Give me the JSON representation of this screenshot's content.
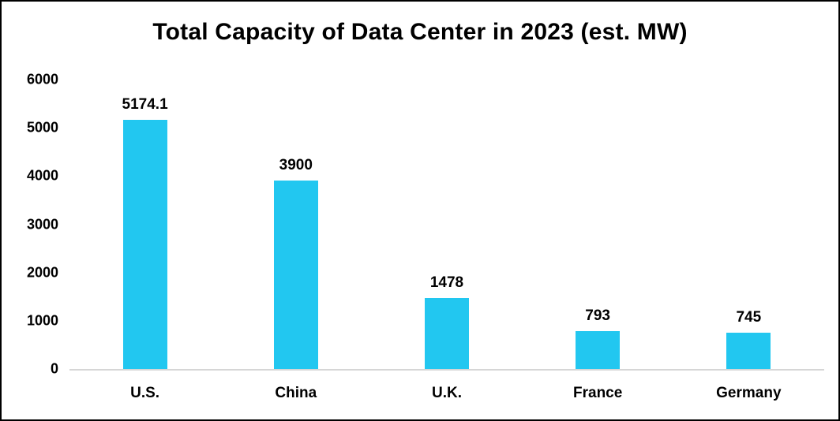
{
  "chart_data": {
    "type": "bar",
    "title": "Total Capacity of Data Center in 2023 (est. MW)",
    "categories": [
      "U.S.",
      "China",
      "U.K.",
      "France",
      "Germany"
    ],
    "values": [
      5174.1,
      3900,
      1478,
      793,
      745
    ],
    "value_labels": [
      "5174.1",
      "3900",
      "1478",
      "793",
      "745"
    ],
    "xlabel": "",
    "ylabel": "",
    "ylim": [
      0,
      6000
    ],
    "yticks": [
      0,
      1000,
      2000,
      3000,
      4000,
      5000,
      6000
    ],
    "grid": false,
    "legend_position": "none",
    "bar_color": "#22c7f0",
    "axis_line_color": "#d6d6d6",
    "text_color": "#000000",
    "background_color": "#ffffff"
  }
}
